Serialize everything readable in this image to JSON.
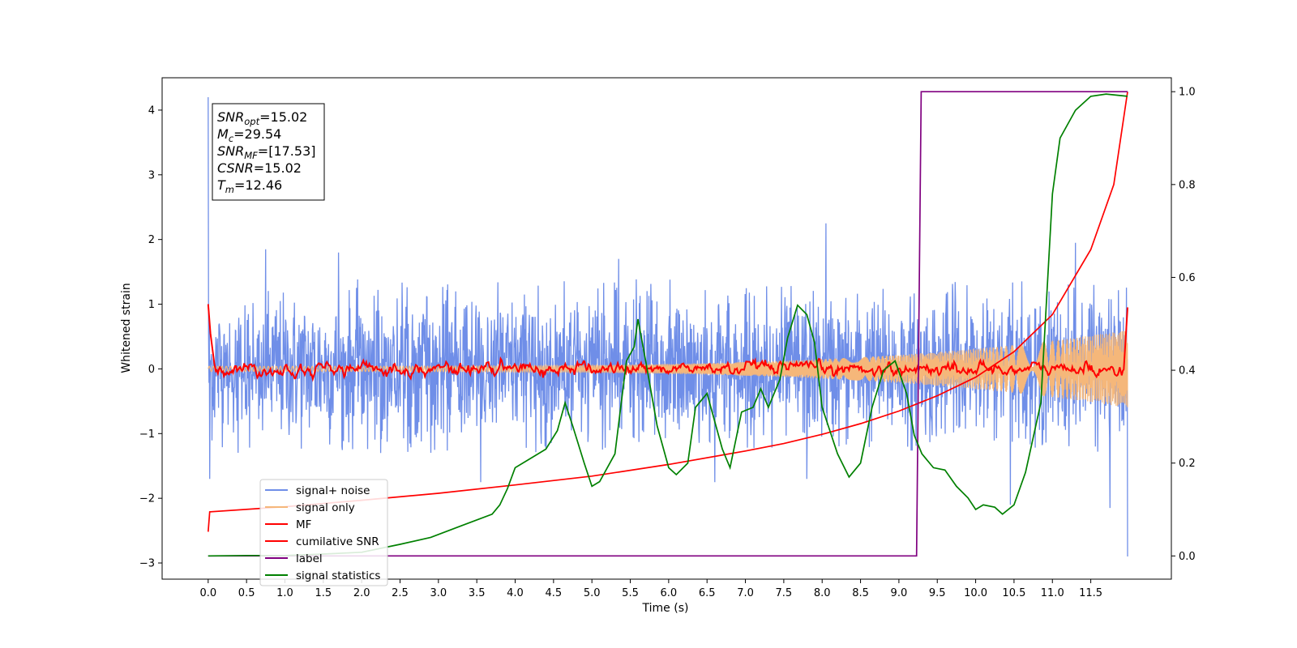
{
  "chart_data": {
    "type": "line",
    "title": "",
    "xlabel": "Time (s)",
    "ylabel": "Whitened strain",
    "xlim": [
      -0.6,
      12.55
    ],
    "ylim": [
      -3.25,
      4.5
    ],
    "y2lim": [
      -0.05,
      1.03
    ],
    "x_ticks": [
      0.0,
      0.5,
      1.0,
      1.5,
      2.0,
      2.5,
      3.0,
      3.5,
      4.0,
      4.5,
      5.0,
      5.5,
      6.0,
      6.5,
      7.0,
      7.5,
      8.0,
      8.5,
      9.0,
      9.5,
      10.0,
      10.5,
      11.0,
      11.5
    ],
    "x_tick_labels": [
      "0.0",
      "0.5",
      "1.0",
      "1.5",
      "2.0",
      "2.5",
      "3.0",
      "3.5",
      "4.0",
      "4.5",
      "5.0",
      "5.5",
      "6.0",
      "6.5",
      "7.0",
      "7.5",
      "8.0",
      "8.5",
      "9.0",
      "9.5",
      "10.0",
      "10.5",
      "11.0",
      "11.5"
    ],
    "y_ticks": [
      -3,
      -2,
      -1,
      0,
      1,
      2,
      3,
      4
    ],
    "y_tick_labels": [
      "−3",
      "−2",
      "−1",
      "0",
      "1",
      "2",
      "3",
      "4"
    ],
    "y2_ticks": [
      0.0,
      0.2,
      0.4,
      0.6,
      0.8,
      1.0
    ],
    "y2_tick_labels": [
      "0.0",
      "0.2",
      "0.4",
      "0.6",
      "0.8",
      "1.0"
    ],
    "legend_position": "lower-left",
    "annotation": [
      {
        "main": "SNR",
        "sub": "opt",
        "rest": "=15.02"
      },
      {
        "main": "M",
        "sub": "c",
        "rest": "=29.54"
      },
      {
        "main": "SNR",
        "sub": "MF",
        "rest": "=[17.53]"
      },
      {
        "main": "CSNR",
        "sub": "",
        "rest": "=15.02"
      },
      {
        "main": "T",
        "sub": "m",
        "rest": "=12.46"
      }
    ],
    "series": [
      {
        "name": "signal+ noise",
        "color": "#6f8ee8",
        "axis": "left",
        "kind": "noise",
        "x_range": [
          0.0,
          11.98
        ],
        "typical_min": -1.3,
        "typical_max": 1.4,
        "peaks": [
          {
            "x": 0.0,
            "y": 4.2
          },
          {
            "x": 0.02,
            "y": -1.7
          },
          {
            "x": 0.75,
            "y": 1.85
          },
          {
            "x": 1.7,
            "y": 1.8
          },
          {
            "x": 3.55,
            "y": -1.75
          },
          {
            "x": 5.35,
            "y": 1.7
          },
          {
            "x": 6.6,
            "y": -1.75
          },
          {
            "x": 7.8,
            "y": -1.7
          },
          {
            "x": 8.05,
            "y": 2.25
          },
          {
            "x": 10.45,
            "y": -2.1
          },
          {
            "x": 11.3,
            "y": 1.95
          },
          {
            "x": 11.75,
            "y": -2.15
          },
          {
            "x": 11.98,
            "y": -2.9
          }
        ]
      },
      {
        "name": "signal only",
        "color": "#f5b77a",
        "axis": "left",
        "kind": "chirp",
        "x_range": [
          0.0,
          11.98
        ],
        "amplitude_start": 0.04,
        "amplitude_end": 0.6
      },
      {
        "name": "MF",
        "color": "#ff0000",
        "axis": "left",
        "kind": "mf",
        "x_range": [
          0.0,
          11.98
        ],
        "start_value": 1.0,
        "end_value": 0.95,
        "jitter": 0.06
      },
      {
        "name": "cumilative SNR",
        "color": "#ff0000",
        "axis": "right",
        "points": [
          [
            0.0,
            0.052
          ],
          [
            0.02,
            0.095
          ],
          [
            1.0,
            0.106
          ],
          [
            2.0,
            0.12
          ],
          [
            3.0,
            0.135
          ],
          [
            4.0,
            0.153
          ],
          [
            5.0,
            0.172
          ],
          [
            6.0,
            0.197
          ],
          [
            7.0,
            0.226
          ],
          [
            7.5,
            0.242
          ],
          [
            8.0,
            0.262
          ],
          [
            8.5,
            0.285
          ],
          [
            9.0,
            0.312
          ],
          [
            9.5,
            0.345
          ],
          [
            10.0,
            0.385
          ],
          [
            10.5,
            0.44
          ],
          [
            11.0,
            0.52
          ],
          [
            11.5,
            0.66
          ],
          [
            11.8,
            0.8
          ],
          [
            11.98,
            1.0
          ]
        ]
      },
      {
        "name": "label",
        "color": "#800080",
        "axis": "right",
        "points": [
          [
            0.0,
            0.0
          ],
          [
            9.23,
            0.0
          ],
          [
            9.29,
            1.0
          ],
          [
            11.98,
            1.0
          ]
        ]
      },
      {
        "name": "signal statistics",
        "color": "#008000",
        "axis": "right",
        "points": [
          [
            0.0,
            0.0
          ],
          [
            0.5,
            0.001
          ],
          [
            1.0,
            0.001
          ],
          [
            1.5,
            0.004
          ],
          [
            2.0,
            0.008
          ],
          [
            2.5,
            0.025
          ],
          [
            2.9,
            0.04
          ],
          [
            3.3,
            0.065
          ],
          [
            3.7,
            0.09
          ],
          [
            3.8,
            0.11
          ],
          [
            3.9,
            0.145
          ],
          [
            4.0,
            0.19
          ],
          [
            4.2,
            0.21
          ],
          [
            4.4,
            0.23
          ],
          [
            4.55,
            0.27
          ],
          [
            4.65,
            0.33
          ],
          [
            4.75,
            0.28
          ],
          [
            4.9,
            0.2
          ],
          [
            5.0,
            0.15
          ],
          [
            5.1,
            0.16
          ],
          [
            5.3,
            0.22
          ],
          [
            5.45,
            0.42
          ],
          [
            5.55,
            0.45
          ],
          [
            5.6,
            0.51
          ],
          [
            5.7,
            0.42
          ],
          [
            5.85,
            0.28
          ],
          [
            6.0,
            0.19
          ],
          [
            6.1,
            0.175
          ],
          [
            6.25,
            0.2
          ],
          [
            6.35,
            0.32
          ],
          [
            6.5,
            0.35
          ],
          [
            6.7,
            0.23
          ],
          [
            6.8,
            0.19
          ],
          [
            6.95,
            0.31
          ],
          [
            7.1,
            0.32
          ],
          [
            7.2,
            0.36
          ],
          [
            7.3,
            0.32
          ],
          [
            7.45,
            0.38
          ],
          [
            7.55,
            0.47
          ],
          [
            7.68,
            0.54
          ],
          [
            7.8,
            0.52
          ],
          [
            7.9,
            0.46
          ],
          [
            8.0,
            0.32
          ],
          [
            8.2,
            0.22
          ],
          [
            8.35,
            0.17
          ],
          [
            8.5,
            0.2
          ],
          [
            8.65,
            0.32
          ],
          [
            8.8,
            0.4
          ],
          [
            8.95,
            0.42
          ],
          [
            9.1,
            0.35
          ],
          [
            9.2,
            0.26
          ],
          [
            9.3,
            0.22
          ],
          [
            9.45,
            0.19
          ],
          [
            9.6,
            0.185
          ],
          [
            9.75,
            0.15
          ],
          [
            9.9,
            0.125
          ],
          [
            10.0,
            0.1
          ],
          [
            10.1,
            0.11
          ],
          [
            10.25,
            0.105
          ],
          [
            10.35,
            0.09
          ],
          [
            10.5,
            0.11
          ],
          [
            10.65,
            0.18
          ],
          [
            10.85,
            0.33
          ],
          [
            11.0,
            0.78
          ],
          [
            11.1,
            0.9
          ],
          [
            11.3,
            0.96
          ],
          [
            11.5,
            0.99
          ],
          [
            11.7,
            0.995
          ],
          [
            11.98,
            0.99
          ]
        ]
      }
    ]
  }
}
